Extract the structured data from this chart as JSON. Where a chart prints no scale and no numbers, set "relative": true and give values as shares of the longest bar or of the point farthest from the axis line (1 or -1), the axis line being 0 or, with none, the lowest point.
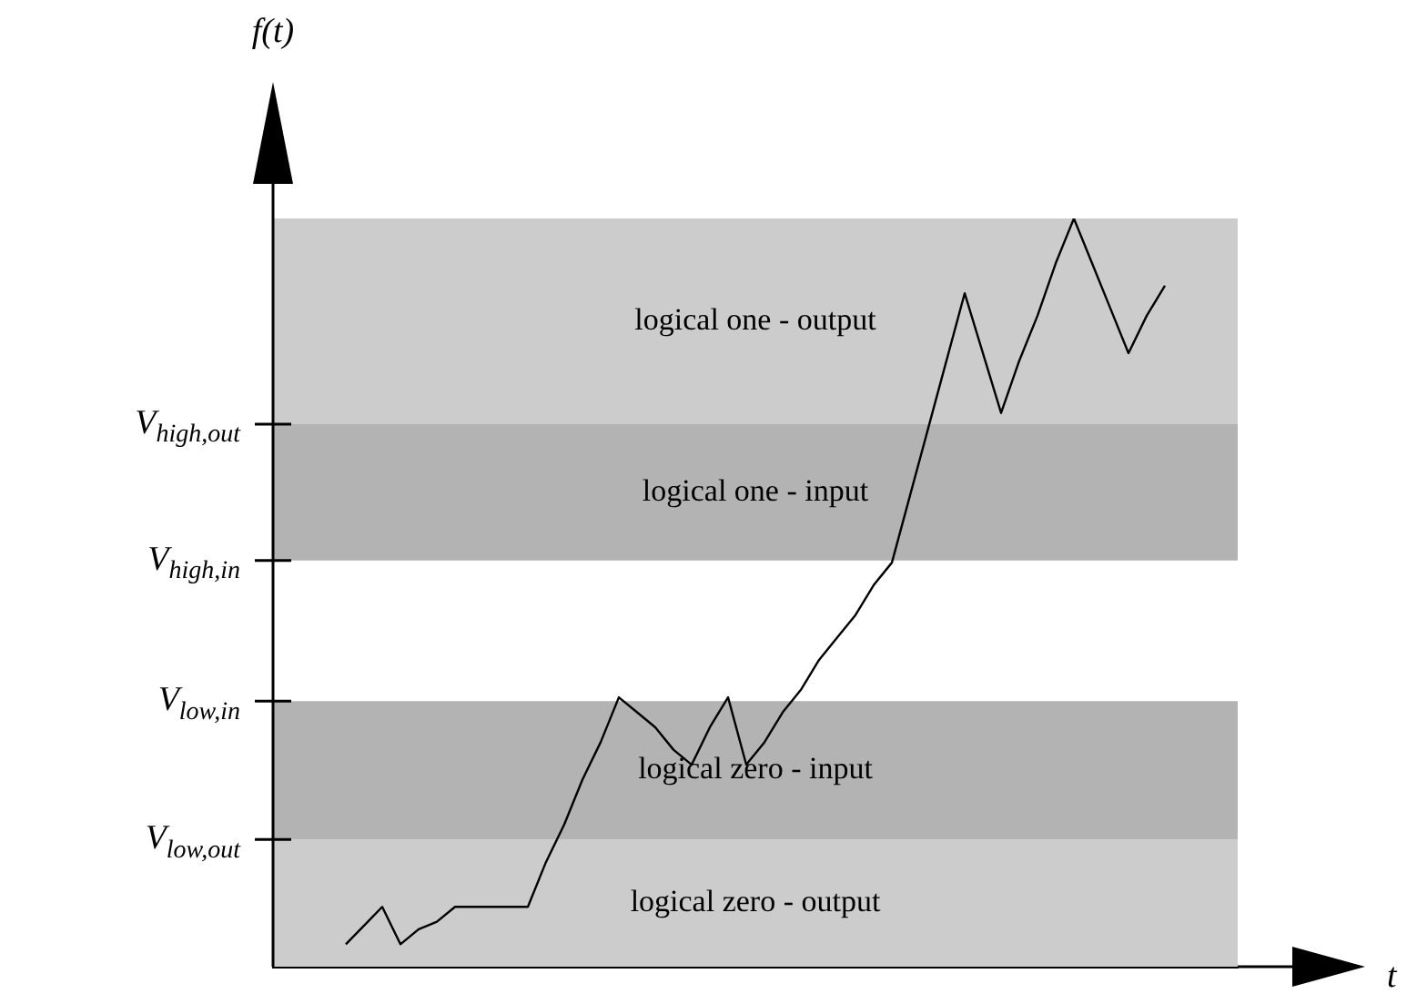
{
  "chart_data": {
    "type": "line",
    "relative": true,
    "xlabel": "t",
    "ylabel": "f(t)",
    "marker": "none",
    "categories": [
      null,
      null,
      null,
      null,
      null,
      null,
      null,
      null,
      null,
      null,
      null,
      null,
      null,
      null,
      null,
      null,
      null,
      null,
      null,
      null,
      null,
      null,
      null,
      null,
      null,
      null,
      null,
      null,
      null,
      null,
      null,
      null,
      null,
      null,
      null,
      null,
      null,
      null,
      null,
      null,
      null,
      null,
      null,
      null,
      null,
      null,
      null,
      null,
      null,
      null,
      null,
      null,
      null,
      null
    ],
    "series": [
      {
        "color": "#000000",
        "values": [
          null,
          null,
          null,
          null,
          0.03,
          0.055,
          0.08,
          0.03,
          0.05,
          0.06,
          0.08,
          0.08,
          0.08,
          0.08,
          0.08,
          0.14,
          0.19,
          0.25,
          0.3,
          0.36,
          0.34,
          0.32,
          0.29,
          0.27,
          0.32,
          0.36,
          0.27,
          0.3,
          0.34,
          0.37,
          0.41,
          0.44,
          0.47,
          0.51,
          0.54,
          0.63,
          0.72,
          0.81,
          0.9,
          0.82,
          0.74,
          0.81,
          0.87,
          0.94,
          1.0,
          0.94,
          0.88,
          0.82,
          0.87,
          0.91,
          null,
          null,
          null,
          null
        ]
      }
    ],
    "annotations": [
      "V$_{low,out}$",
      "V$_{low,in}$",
      "V$_{high,in}$",
      "V$_{high,out}$"
    ],
    "bands": [
      {
        "axis": "y",
        "from": 0,
        "to": 0.17,
        "label": "logical zero - output",
        "color": "#cccccc"
      },
      {
        "axis": "y",
        "from": 0.17,
        "to": 0.355,
        "label": "logical zero - input",
        "color": "#b3b3b3"
      },
      {
        "axis": "y",
        "from": 0.543,
        "to": 0.725,
        "label": "logical one - input",
        "color": "#b3b3b3"
      },
      {
        "axis": "y",
        "from": 0.725,
        "to": 1.0,
        "label": "logical one - output",
        "color": "#cccccc"
      }
    ]
  }
}
